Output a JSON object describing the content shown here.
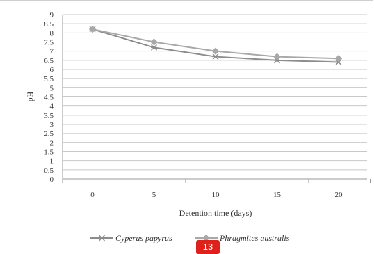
{
  "chart_data": {
    "type": "line",
    "x": [
      0,
      5,
      10,
      15,
      20
    ],
    "series": [
      {
        "name": "Cyperus papyrus",
        "values": [
          8.2,
          7.2,
          6.7,
          6.5,
          6.4
        ],
        "color": "#8c8c8c",
        "marker": "x"
      },
      {
        "name": "Phragmites australis",
        "values": [
          8.2,
          7.5,
          7.0,
          6.7,
          6.6
        ],
        "color": "#a8a8a8",
        "marker": "diamond"
      }
    ],
    "xlabel": "Detention time (days)",
    "ylabel": "pH",
    "ylim": [
      0,
      9
    ],
    "yticks": [
      "0",
      "0.5",
      "1",
      "1.5",
      "2",
      "2.5",
      "3",
      "3.5",
      "4",
      "4.5",
      "5",
      "5.5",
      "6",
      "6.5",
      "7",
      "7.5",
      "8",
      "8.5",
      "9"
    ],
    "xticks": [
      "0",
      "5",
      "10",
      "15",
      "20"
    ],
    "grid": true,
    "legend": "bottom"
  },
  "badge": {
    "text": "13"
  }
}
